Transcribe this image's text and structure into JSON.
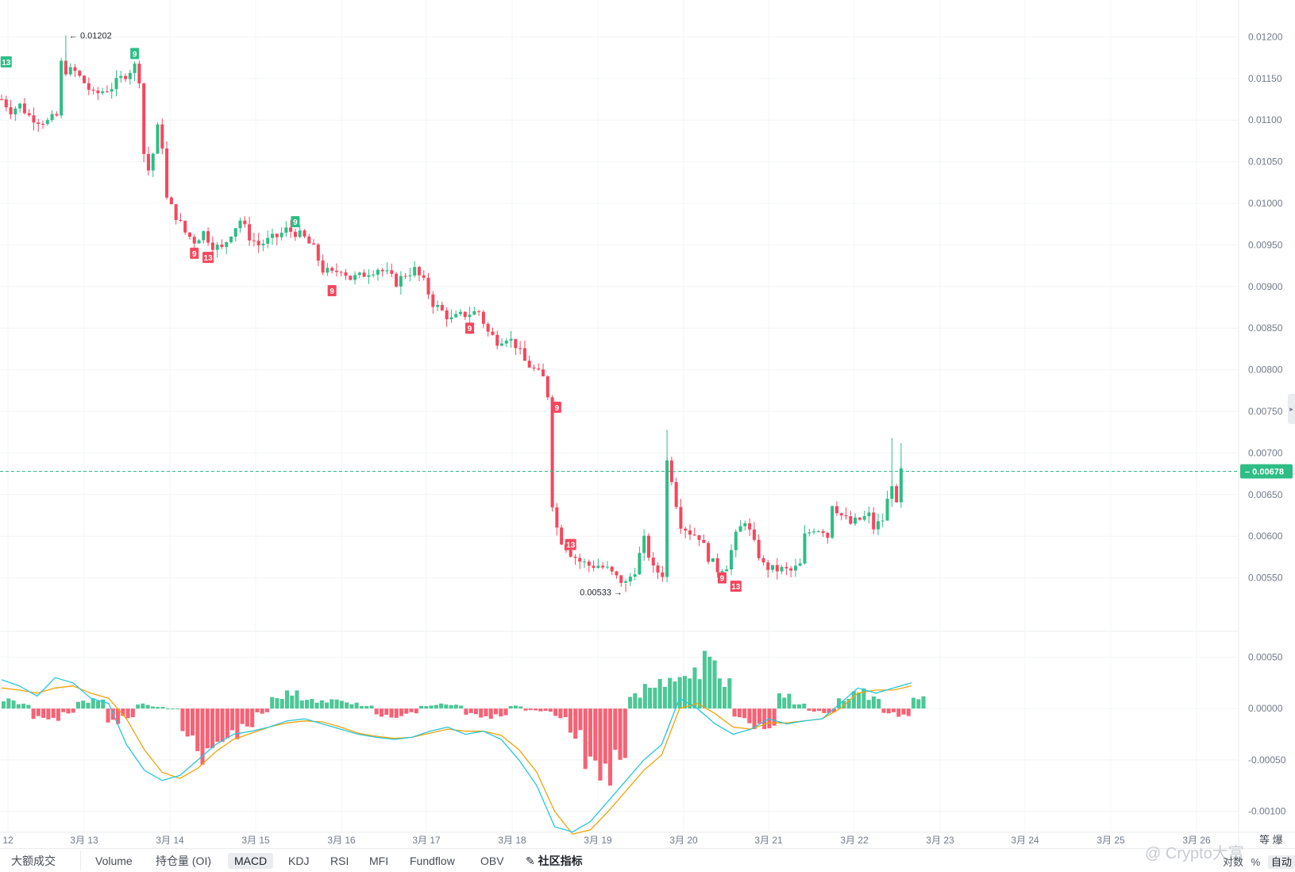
{
  "chart_data": [
    {
      "type": "candlestick",
      "y_ticks": [
        "0.01200",
        "0.01150",
        "0.01100",
        "0.01050",
        "0.01000",
        "0.00950",
        "0.00900",
        "0.00850",
        "0.00800",
        "0.00750",
        "0.00700",
        "0.00650",
        "0.00600",
        "0.00550"
      ],
      "ylim": [
        0.005,
        0.0123
      ],
      "current_price": "0.00678",
      "high_label": "0.01202",
      "low_label": "0.00533",
      "x_labels": [
        "12",
        "3月 13",
        "3月 14",
        "3月 15",
        "3月 16",
        "3月 17",
        "3月 18",
        "3月 19",
        "3月 20",
        "3月 21",
        "3月 22",
        "3月 23",
        "3月 24",
        "3月 25",
        "3月 26"
      ],
      "price_path": [
        [
          0,
          0.01125
        ],
        [
          2,
          0.01112
        ],
        [
          4,
          0.01118
        ],
        [
          6,
          0.01105
        ],
        [
          8,
          0.011
        ],
        [
          10,
          0.01098
        ],
        [
          12,
          0.01105
        ],
        [
          13,
          0.01168
        ],
        [
          14,
          0.0116
        ],
        [
          16,
          0.01158
        ],
        [
          18,
          0.01145
        ],
        [
          20,
          0.0113
        ],
        [
          22,
          0.01135
        ],
        [
          24,
          0.0114
        ],
        [
          26,
          0.0115
        ],
        [
          28,
          0.0116
        ],
        [
          29,
          0.01165
        ],
        [
          30,
          0.0115
        ],
        [
          31,
          0.0106
        ],
        [
          32,
          0.0104
        ],
        [
          33,
          0.0106
        ],
        [
          34,
          0.0109
        ],
        [
          35,
          0.0107
        ],
        [
          36,
          0.01005
        ],
        [
          38,
          0.00985
        ],
        [
          40,
          0.00965
        ],
        [
          42,
          0.00955
        ],
        [
          44,
          0.00965
        ],
        [
          46,
          0.0095
        ],
        [
          48,
          0.00945
        ],
        [
          50,
          0.00965
        ],
        [
          52,
          0.0098
        ],
        [
          54,
          0.0096
        ],
        [
          56,
          0.0095
        ],
        [
          58,
          0.00955
        ],
        [
          60,
          0.0096
        ],
        [
          62,
          0.00968
        ],
        [
          64,
          0.00965
        ],
        [
          66,
          0.00958
        ],
        [
          68,
          0.00945
        ],
        [
          70,
          0.0092
        ],
        [
          72,
          0.00915
        ],
        [
          74,
          0.00922
        ],
        [
          76,
          0.0091
        ],
        [
          78,
          0.00912
        ],
        [
          80,
          0.00918
        ],
        [
          82,
          0.00922
        ],
        [
          84,
          0.00915
        ],
        [
          86,
          0.00905
        ],
        [
          88,
          0.00915
        ],
        [
          90,
          0.0092
        ],
        [
          92,
          0.00905
        ],
        [
          94,
          0.0088
        ],
        [
          96,
          0.0087
        ],
        [
          98,
          0.0086
        ],
        [
          100,
          0.00865
        ],
        [
          102,
          0.00868
        ],
        [
          104,
          0.0087
        ],
        [
          106,
          0.00845
        ],
        [
          108,
          0.00835
        ],
        [
          110,
          0.0084
        ],
        [
          112,
          0.0083
        ],
        [
          114,
          0.0081
        ],
        [
          116,
          0.008
        ],
        [
          118,
          0.0079
        ],
        [
          119,
          0.0077
        ],
        [
          120,
          0.0064
        ],
        [
          121,
          0.0061
        ],
        [
          122,
          0.00595
        ],
        [
          124,
          0.0058
        ],
        [
          126,
          0.0057
        ],
        [
          128,
          0.00565
        ],
        [
          130,
          0.00565
        ],
        [
          132,
          0.0056
        ],
        [
          134,
          0.0055
        ],
        [
          136,
          0.00543
        ],
        [
          138,
          0.0056
        ],
        [
          140,
          0.00595
        ],
        [
          142,
          0.0056
        ],
        [
          144,
          0.00555
        ],
        [
          145,
          0.0069
        ],
        [
          146,
          0.0067
        ],
        [
          147,
          0.0064
        ],
        [
          148,
          0.00615
        ],
        [
          150,
          0.00605
        ],
        [
          152,
          0.006
        ],
        [
          154,
          0.00575
        ],
        [
          156,
          0.0056
        ],
        [
          158,
          0.00565
        ],
        [
          160,
          0.006
        ],
        [
          162,
          0.0062
        ],
        [
          164,
          0.0059
        ],
        [
          166,
          0.00565
        ],
        [
          168,
          0.0056
        ],
        [
          170,
          0.0056
        ],
        [
          172,
          0.00558
        ],
        [
          174,
          0.00565
        ],
        [
          175,
          0.006
        ],
        [
          177,
          0.0061
        ],
        [
          179,
          0.00608
        ],
        [
          180,
          0.006
        ],
        [
          181,
          0.0064
        ],
        [
          183,
          0.00625
        ],
        [
          185,
          0.00615
        ],
        [
          187,
          0.0062
        ],
        [
          189,
          0.00625
        ],
        [
          190,
          0.0061
        ],
        [
          192,
          0.0062
        ],
        [
          194,
          0.00665
        ],
        [
          195,
          0.00635
        ],
        [
          196,
          0.00678
        ]
      ],
      "td_markers": [
        {
          "i": 1,
          "label": "13",
          "dir": "up",
          "price": 0.0117
        },
        {
          "i": 29,
          "label": "9",
          "dir": "up",
          "price": 0.0118
        },
        {
          "i": 42,
          "label": "9",
          "dir": "down",
          "price": 0.0094
        },
        {
          "i": 45,
          "label": "13",
          "dir": "down",
          "price": 0.00935
        },
        {
          "i": 64,
          "label": "9",
          "dir": "up",
          "price": 0.00978
        },
        {
          "i": 72,
          "label": "9",
          "dir": "down",
          "price": 0.00895
        },
        {
          "i": 102,
          "label": "9",
          "dir": "down",
          "price": 0.0085
        },
        {
          "i": 121,
          "label": "9",
          "dir": "down",
          "price": 0.00755
        },
        {
          "i": 124,
          "label": "13",
          "dir": "down",
          "price": 0.0059
        },
        {
          "i": 157,
          "label": "9",
          "dir": "down",
          "price": 0.0055
        },
        {
          "i": 160,
          "label": "13",
          "dir": "down",
          "price": 0.0054
        }
      ]
    },
    {
      "type": "macd",
      "y_ticks": [
        "0.00050",
        "0.00000",
        "-0.00050",
        "-0.00100"
      ],
      "ylim": [
        -0.00118,
        0.00065
      ],
      "series": [
        {
          "values": [
            0.00028,
            0.00022,
            0.00012,
            0.0003,
            0.00025,
            0.0001,
            5e-05,
            -0.00035,
            -0.0006,
            -0.0007,
            -0.00065,
            -0.0005,
            -0.00035,
            -0.00025,
            -0.00022,
            -0.00018,
            -0.00012,
            -0.0001,
            -0.00015,
            -0.0002,
            -0.00025,
            -0.00028,
            -0.0003,
            -0.00028,
            -0.00022,
            -0.00018,
            -0.00025,
            -0.00022,
            -0.0003,
            -0.0005,
            -0.00075,
            -0.00115,
            -0.0012,
            -0.0011,
            -0.0009,
            -0.0007,
            -0.0005,
            -0.00035,
            0.0001,
            0.0,
            -0.00015,
            -0.00025,
            -0.0002,
            -0.0001,
            -0.00015,
            -0.00012,
            -0.0001,
            5e-05,
            0.0002,
            0.00015,
            0.0002,
            0.00025
          ]
        },
        {
          "values": [
            0.0002,
            0.00018,
            0.00015,
            0.0002,
            0.00022,
            0.00015,
            0.0001,
            -0.0001,
            -0.0004,
            -0.00062,
            -0.00068,
            -0.00058,
            -0.00042,
            -0.0003,
            -0.00024,
            -0.00018,
            -0.00014,
            -0.00012,
            -0.00013,
            -0.00018,
            -0.00024,
            -0.00027,
            -0.00029,
            -0.00028,
            -0.00024,
            -0.0002,
            -0.00022,
            -0.00022,
            -0.00026,
            -0.0004,
            -0.00062,
            -0.001,
            -0.00122,
            -0.00118,
            -0.001,
            -0.0008,
            -0.0006,
            -0.00045,
            0.0,
            5e-05,
            -5e-05,
            -0.00018,
            -0.0002,
            -0.00014,
            -0.00014,
            -0.00012,
            -0.0001,
            0.0,
            0.00015,
            0.00018,
            0.00018,
            0.00022
          ]
        }
      ],
      "histogram": [
        0.0001,
        5e-05,
        -0.0001,
        -0.00012,
        -5e-05,
        8e-05,
        0.0001,
        -0.00015,
        -0.0001,
        5e-05,
        2e-05,
        0.0,
        -0.0003,
        -0.00055,
        -0.0004,
        -0.0003,
        -0.0002,
        -5e-05,
        0.00012,
        0.00018,
        0.0001,
        8e-05,
        0.0001,
        6e-05,
        3e-05,
        -8e-05,
        -0.0001,
        -5e-05,
        3e-05,
        5e-05,
        4e-05,
        -6e-05,
        -0.0001,
        -8e-05,
        3e-05,
        -2e-05,
        -3e-05,
        -0.0001,
        -0.0003,
        -0.0006,
        -0.00075,
        -0.00055,
        0.00015,
        0.00025,
        0.0003,
        0.00035,
        0.0004,
        0.0006,
        0.0003,
        -0.0001,
        -0.0002,
        -0.00022,
        0.00015,
        5e-05,
        -3e-05,
        -5e-05,
        0.0001,
        0.0002,
        0.00012,
        -5e-05,
        -8e-05,
        0.00012
      ]
    }
  ],
  "toolbar": {
    "items": [
      "大额成交",
      "Volume",
      "持仓量 (OI)",
      "MACD",
      "KDJ",
      "RSI",
      "MFI",
      "Fundflow",
      "OBV",
      "社区指标"
    ],
    "active": "MACD"
  },
  "corner": {
    "top": "等 爆",
    "log": "对数",
    "percent": "%",
    "auto": "自动"
  },
  "watermark": "@ Crypto大富",
  "colors": {
    "up": "#2ebd85",
    "down": "#f6465d",
    "macd": "#26c6da",
    "signal": "#f0a30a",
    "grid": "#f3f4f6",
    "price_line": "#2ebd85"
  }
}
